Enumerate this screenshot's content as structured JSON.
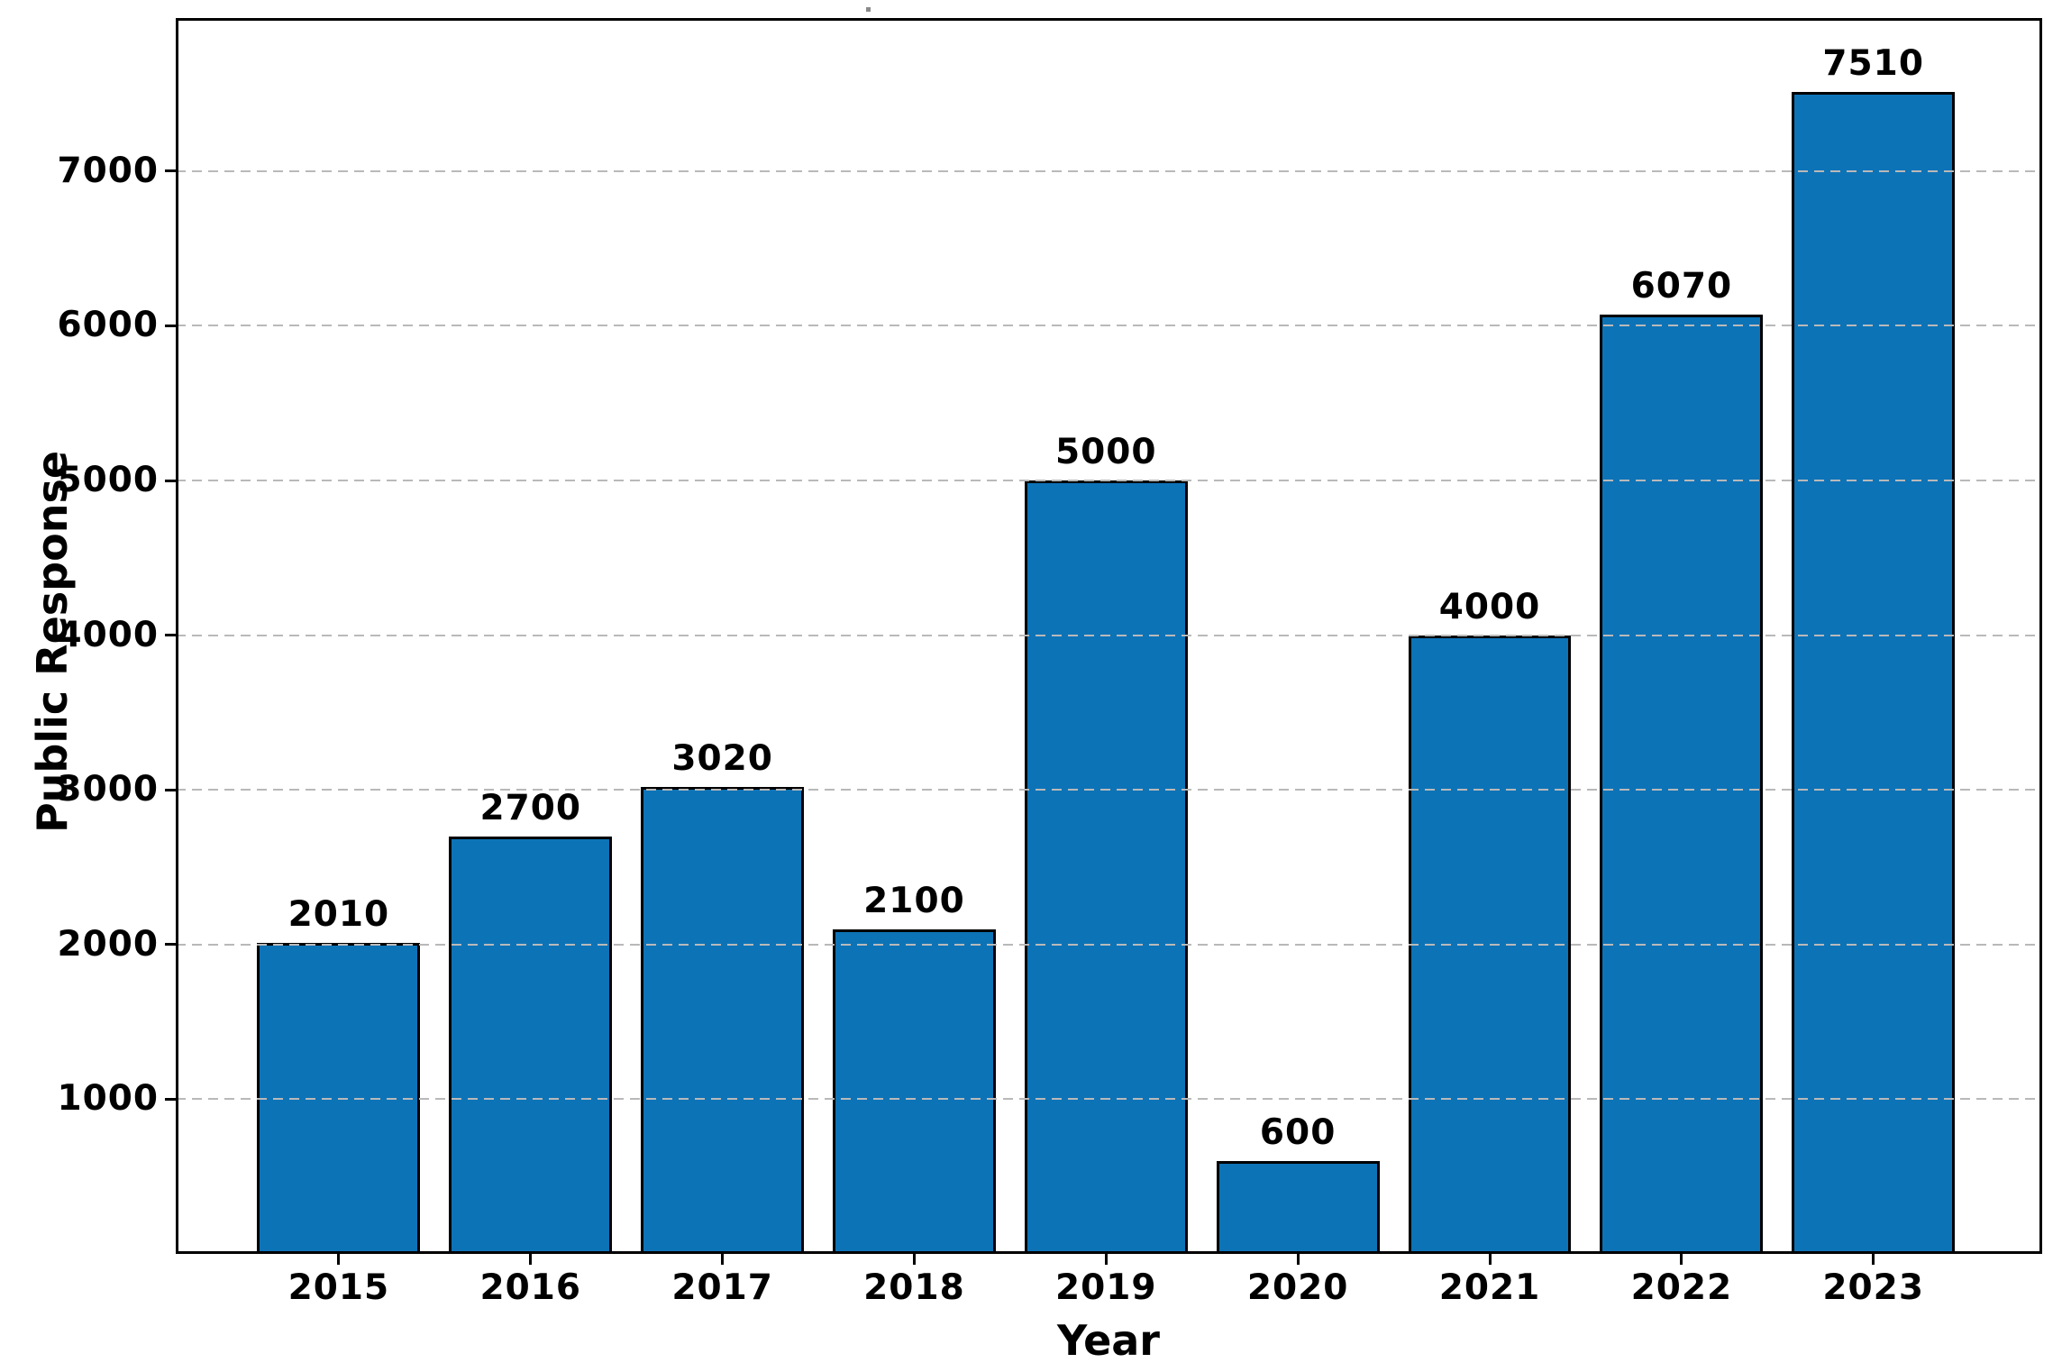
{
  "chart_data": {
    "type": "bar",
    "title": ".",
    "xlabel": "Year",
    "ylabel": "Public Response",
    "categories": [
      "2015",
      "2016",
      "2017",
      "2018",
      "2019",
      "2020",
      "2021",
      "2022",
      "2023"
    ],
    "values": [
      2010,
      2700,
      3020,
      2100,
      5000,
      600,
      4000,
      6070,
      7510
    ],
    "value_labels": [
      "2010",
      "2700",
      "3020",
      "2100",
      "5000",
      "600",
      "4000",
      "6070",
      "7510"
    ],
    "yticks": [
      1000,
      2000,
      3000,
      4000,
      5000,
      6000,
      7000
    ],
    "ytick_labels": [
      "1000",
      "2000",
      "3000",
      "4000",
      "5000",
      "6000",
      "7000"
    ],
    "ylim": [
      0,
      7990
    ],
    "grid": {
      "axis": "y",
      "style": "dashed",
      "color": "#b9b9b9",
      "drawn_above_bars": true
    },
    "legend": "none",
    "bar_color": "#0d73b7",
    "bar_edge_color": "#000000"
  }
}
